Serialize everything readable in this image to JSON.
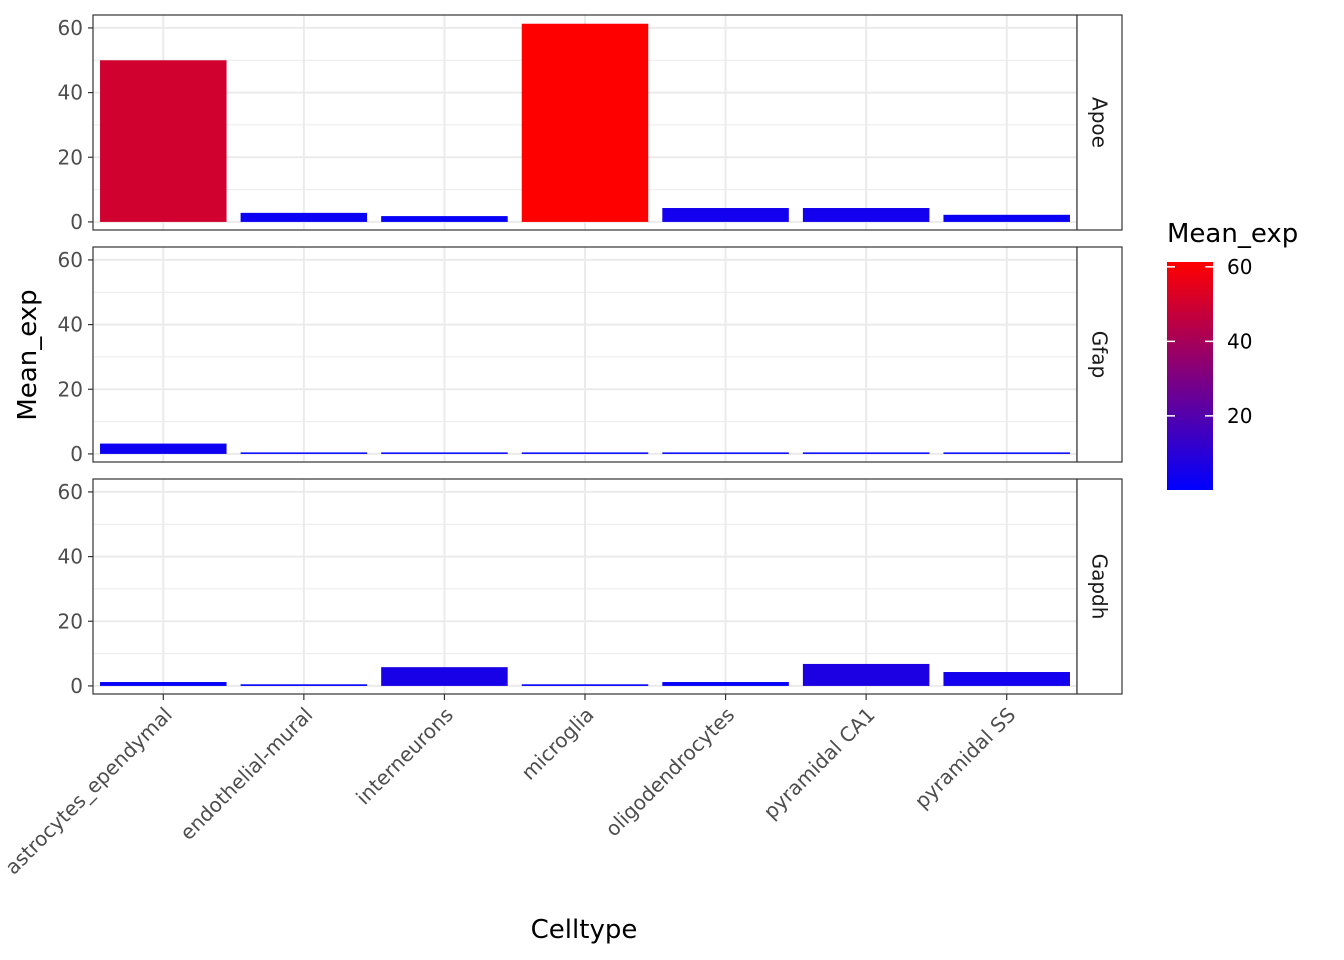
{
  "chart_data": {
    "type": "bar",
    "facet_layout": "rows",
    "grid": true,
    "legend_position": "right",
    "xlabel": "Celltype",
    "ylabel": "Mean_exp",
    "ylim": [
      -2.5,
      64
    ],
    "yticks": [
      0,
      20,
      40,
      60
    ],
    "categories": [
      "astrocytes_ependymal",
      "endothelial-mural",
      "interneurons",
      "microglia",
      "oligodendrocytes",
      "pyramidal CA1",
      "pyramidal SS"
    ],
    "series": [
      {
        "name": "Apoe",
        "values": [
          50,
          2.8,
          1.8,
          61.3,
          4.3,
          4.3,
          2.2
        ]
      },
      {
        "name": "Gfap",
        "values": [
          3.2,
          0.1,
          0.1,
          0.1,
          0.1,
          0.1,
          0.1
        ]
      },
      {
        "name": "Gapdh",
        "values": [
          1.2,
          0.5,
          5.8,
          0.5,
          1.2,
          6.8,
          4.3
        ]
      }
    ],
    "color_scale": {
      "title": "Mean_exp",
      "low": "#0000ff",
      "high": "#ff0000",
      "min": 0.1,
      "max": 61.3,
      "breaks": [
        20,
        40,
        60
      ]
    }
  }
}
